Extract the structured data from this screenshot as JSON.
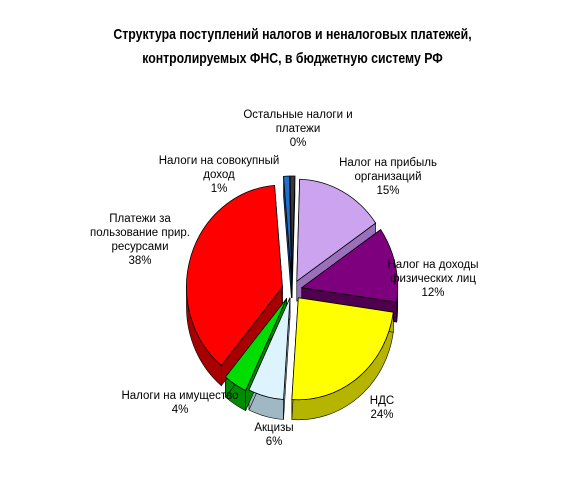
{
  "chart_data": {
    "type": "pie",
    "title_lines": [
      "Структура поступлений налогов и неналоговых платежей,",
      "контролируемых ФНС, в бюджетную систему РФ"
    ],
    "slices": [
      {
        "label_lines": [
          "Налог на прибыль",
          "организаций"
        ],
        "value_label": "15%",
        "value": 15,
        "color": "#CCA3EE",
        "side": "#9A70BC"
      },
      {
        "label_lines": [
          "Налог на доходы",
          "физических лиц"
        ],
        "value_label": "12%",
        "value": 12,
        "color": "#7F007F",
        "side": "#4E004E"
      },
      {
        "label_lines": [
          "НДС"
        ],
        "value_label": "24%",
        "value": 24,
        "color": "#FFFF00",
        "side": "#B5B500"
      },
      {
        "label_lines": [
          "Акцизы"
        ],
        "value_label": "6%",
        "value": 6,
        "color": "#DDF4FF",
        "side": "#9FB8C4"
      },
      {
        "label_lines": [
          "Налоги на имущество"
        ],
        "value_label": "4%",
        "value": 4,
        "color": "#00DD00",
        "side": "#008C00"
      },
      {
        "label_lines": [
          "Платежи за",
          "пользование прир.",
          "ресурсами"
        ],
        "value_label": "38%",
        "value": 38,
        "color": "#FF0000",
        "side": "#A80000"
      },
      {
        "label_lines": [
          "Налоги на совокупный",
          "доход"
        ],
        "value_label": "1%",
        "value": 1,
        "color": "#1F6FCC",
        "side": "#0F3F7F"
      },
      {
        "label_lines": [
          "Остальные налоги и",
          "платежи"
        ],
        "value_label": "0%",
        "value": 0,
        "color": "#3A3A3A",
        "side": "#222222"
      }
    ],
    "legend": "none"
  }
}
